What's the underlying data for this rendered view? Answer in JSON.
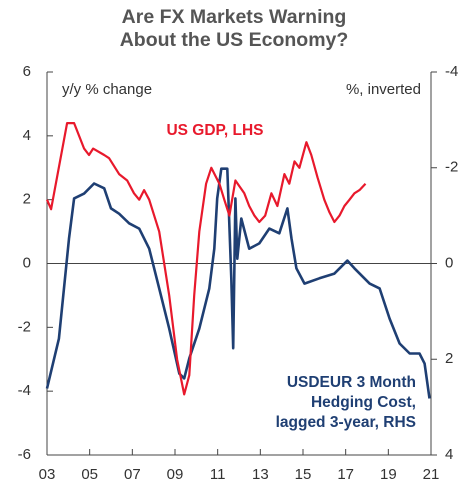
{
  "chart_data": {
    "type": "line",
    "title": "Are FX Markets Warning About the US Economy?",
    "y_label": "y/y % change",
    "y2_label": "%, inverted",
    "xlim": [
      2003,
      2021
    ],
    "xticks": [
      {
        "value": 2003,
        "label": "03"
      },
      {
        "value": 2005,
        "label": "05"
      },
      {
        "value": 2007,
        "label": "07"
      },
      {
        "value": 2009,
        "label": "09"
      },
      {
        "value": 2011,
        "label": "11"
      },
      {
        "value": 2013,
        "label": "13"
      },
      {
        "value": 2015,
        "label": "15"
      },
      {
        "value": 2017,
        "label": "17"
      },
      {
        "value": 2019,
        "label": "19"
      },
      {
        "value": 2021,
        "label": "21"
      }
    ],
    "ylim": [
      -6,
      6
    ],
    "yticks": [
      -6,
      -4,
      -2,
      0,
      2,
      4,
      6
    ],
    "y2lim": [
      4,
      -4
    ],
    "y2ticks": [
      -4,
      -2,
      0,
      2,
      4
    ],
    "zero_line": true,
    "series": [
      {
        "name": "US GDP, LHS",
        "color": "#e8192c",
        "axis": "y",
        "x": [
          2003.0,
          2003.19,
          2003.94,
          2004.27,
          2004.74,
          2004.97,
          2005.16,
          2005.68,
          2005.91,
          2006.38,
          2006.76,
          2007.08,
          2007.32,
          2007.55,
          2007.79,
          2008.26,
          2008.73,
          2009.1,
          2009.43,
          2009.67,
          2009.9,
          2010.14,
          2010.46,
          2010.7,
          2011.08,
          2011.31,
          2011.55,
          2011.83,
          2012.25,
          2012.48,
          2012.72,
          2012.95,
          2013.23,
          2013.52,
          2013.8,
          2014.13,
          2014.36,
          2014.6,
          2014.83,
          2015.16,
          2015.39,
          2015.68,
          2016.0,
          2016.24,
          2016.47,
          2016.71,
          2016.94,
          2017.18,
          2017.41,
          2017.65,
          2017.93
        ],
        "values": [
          2.0,
          1.7,
          4.4,
          4.4,
          3.6,
          3.4,
          3.6,
          3.4,
          3.3,
          2.8,
          2.6,
          2.2,
          2.0,
          2.3,
          2.0,
          1.0,
          -1.0,
          -3.0,
          -4.1,
          -3.5,
          -1.0,
          1.0,
          2.5,
          3.0,
          2.5,
          2.0,
          1.5,
          2.6,
          2.2,
          1.8,
          1.5,
          1.3,
          1.5,
          2.2,
          1.8,
          2.8,
          2.5,
          3.2,
          3.0,
          3.8,
          3.4,
          2.7,
          2.0,
          1.6,
          1.3,
          1.5,
          1.8,
          2.0,
          2.2,
          2.3,
          2.5
        ]
      },
      {
        "name": "USDEUR 3 Month Hedging Cost, lagged 3-year, RHS",
        "color": "#1f3f73",
        "axis": "y2",
        "x": [
          2003.0,
          2003.56,
          2004.03,
          2004.27,
          2004.74,
          2005.21,
          2005.68,
          2006.0,
          2006.38,
          2006.85,
          2007.32,
          2007.79,
          2008.26,
          2008.73,
          2009.2,
          2009.43,
          2009.67,
          2010.14,
          2010.61,
          2010.84,
          2010.98,
          2011.17,
          2011.45,
          2011.64,
          2011.73,
          2011.83,
          2011.92,
          2012.11,
          2012.48,
          2012.95,
          2013.42,
          2013.89,
          2014.27,
          2014.46,
          2014.69,
          2015.07,
          2015.77,
          2016.47,
          2017.08,
          2017.41,
          2018.12,
          2018.59,
          2019.06,
          2019.53,
          2020.0,
          2020.46,
          2020.7,
          2020.93
        ],
        "values": [
          2.61,
          1.57,
          -0.52,
          -1.36,
          -1.46,
          -1.67,
          -1.57,
          -1.15,
          -1.04,
          -0.84,
          -0.73,
          -0.31,
          0.52,
          1.36,
          2.3,
          2.4,
          1.98,
          1.36,
          0.52,
          -0.31,
          -1.36,
          -1.98,
          -1.98,
          0.31,
          1.77,
          -1.36,
          -0.1,
          -0.94,
          -0.31,
          -0.42,
          -0.73,
          -0.63,
          -1.15,
          -0.52,
          0.1,
          0.42,
          0.31,
          0.21,
          -0.06,
          0.1,
          0.42,
          0.52,
          1.15,
          1.67,
          1.88,
          1.88,
          2.09,
          2.82
        ]
      }
    ]
  }
}
